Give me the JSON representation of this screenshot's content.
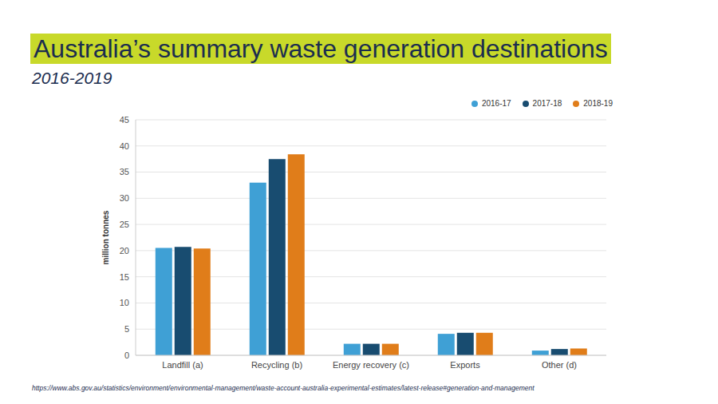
{
  "chart_data": {
    "type": "bar",
    "title": "Australia’s summary waste generation destinations",
    "subtitle": "2016-2019",
    "source": "https://www.abs.gov.au/statistics/environment/environmental-management/waste-account-australia-experimental-estimates/latest-release#generation-and-management",
    "y_label": "million tonnes",
    "categories": [
      "Landfill (a)",
      "Recycling (b)",
      "Energy recovery (c)",
      "Exports",
      "Other (d)"
    ],
    "series": [
      {
        "name": "2016-17",
        "color": "#3fa0d5",
        "values": [
          20.5,
          33.0,
          2.2,
          4.1,
          0.9
        ]
      },
      {
        "name": "2017-18",
        "color": "#184c70",
        "values": [
          20.7,
          37.5,
          2.2,
          4.3,
          1.2
        ]
      },
      {
        "name": "2018-19",
        "color": "#e07d1a",
        "values": [
          20.4,
          38.4,
          2.2,
          4.3,
          1.3
        ]
      }
    ],
    "ylim": [
      0,
      45
    ],
    "yticks": [
      0,
      5,
      10,
      15,
      20,
      25,
      30,
      35,
      40,
      45
    ],
    "grid": true,
    "legend": "top-right"
  }
}
